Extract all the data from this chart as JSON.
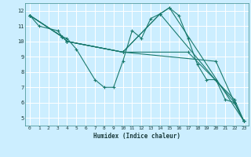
{
  "xlabel": "Humidex (Indice chaleur)",
  "bg_color": "#cceeff",
  "grid_color": "#ffffff",
  "line_color": "#1a7a6e",
  "xlim": [
    -0.5,
    23.5
  ],
  "ylim": [
    4.5,
    12.5
  ],
  "xticks": [
    0,
    1,
    2,
    3,
    4,
    5,
    6,
    7,
    8,
    9,
    10,
    11,
    12,
    13,
    14,
    15,
    16,
    17,
    18,
    19,
    20,
    21,
    22,
    23
  ],
  "yticks": [
    5,
    6,
    7,
    8,
    9,
    10,
    11,
    12
  ],
  "lines": [
    {
      "x": [
        0,
        1,
        3,
        3.5,
        4,
        5,
        7,
        8,
        9,
        10,
        11,
        12,
        13,
        14,
        15,
        16,
        17,
        18,
        19,
        20,
        21,
        22,
        23
      ],
      "y": [
        11.7,
        11.0,
        10.7,
        10.3,
        10.2,
        9.5,
        7.5,
        7.0,
        7.0,
        8.7,
        10.7,
        10.2,
        11.5,
        11.8,
        12.2,
        11.7,
        10.2,
        8.5,
        7.5,
        7.5,
        6.2,
        6.0,
        4.8
      ]
    },
    {
      "x": [
        0,
        3.5,
        4,
        10,
        14,
        15,
        23
      ],
      "y": [
        11.7,
        10.3,
        10.0,
        9.3,
        11.8,
        12.2,
        4.8
      ]
    },
    {
      "x": [
        0,
        3.5,
        4,
        10,
        14,
        22,
        23
      ],
      "y": [
        11.7,
        10.3,
        10.0,
        9.3,
        11.8,
        6.0,
        4.8
      ]
    },
    {
      "x": [
        0,
        3.5,
        4,
        10,
        17,
        22,
        23
      ],
      "y": [
        11.7,
        10.3,
        10.0,
        9.3,
        9.3,
        6.2,
        4.8
      ]
    },
    {
      "x": [
        0,
        3.5,
        4,
        10,
        20,
        22,
        23
      ],
      "y": [
        11.7,
        10.3,
        10.0,
        9.3,
        8.7,
        6.0,
        4.8
      ]
    }
  ]
}
